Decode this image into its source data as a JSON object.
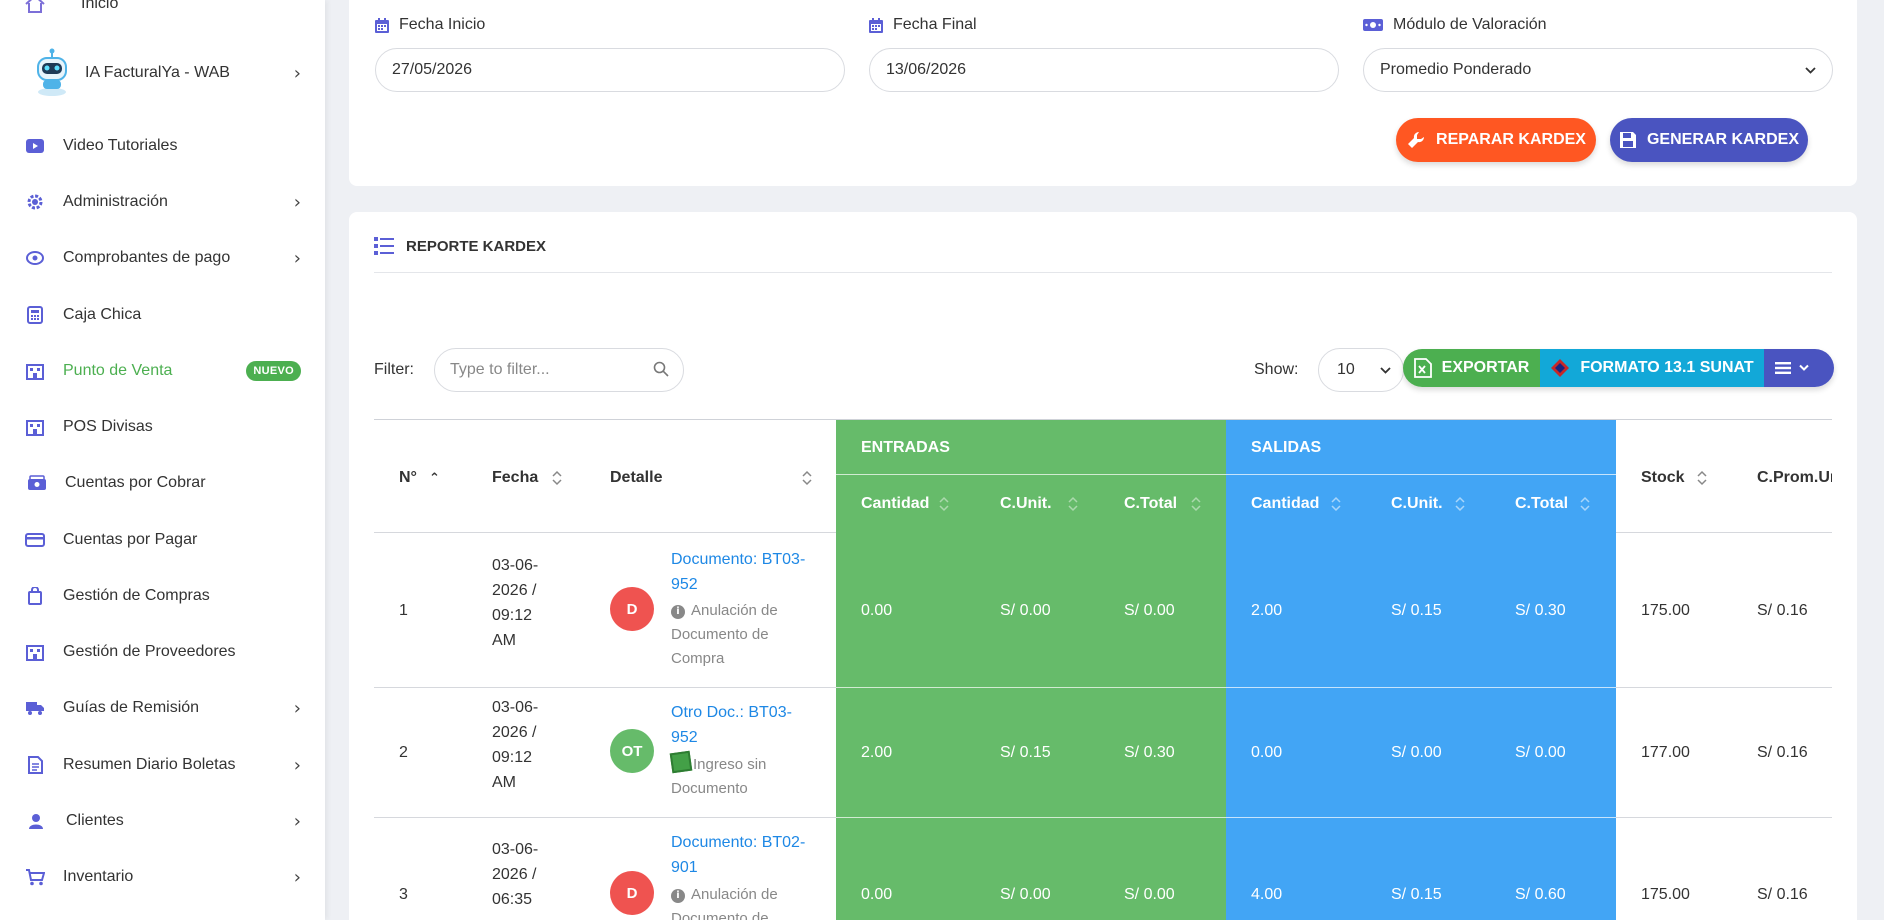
{
  "sidebar": {
    "top_item": "Inicio",
    "items": [
      {
        "label": "IA FacturalYa - WAB",
        "icon": "robot-icon",
        "chevron": true
      },
      {
        "label": "Video Tutoriales",
        "icon": "video-icon",
        "chevron": false
      },
      {
        "label": "Administración",
        "icon": "gear-icon",
        "chevron": true
      },
      {
        "label": "Comprobantes de pago",
        "icon": "receipt-icon",
        "chevron": true
      },
      {
        "label": "Caja Chica",
        "icon": "calculator-icon",
        "chevron": false
      },
      {
        "label": "Punto de Venta",
        "icon": "store-icon",
        "chevron": false,
        "badge": "NUEVO",
        "active": true
      },
      {
        "label": "POS Divisas",
        "icon": "store-icon",
        "chevron": false
      },
      {
        "label": "Cuentas por Cobrar",
        "icon": "cash-icon",
        "chevron": false
      },
      {
        "label": "Cuentas por Pagar",
        "icon": "card-icon",
        "chevron": false
      },
      {
        "label": "Gestión de Compras",
        "icon": "bag-icon",
        "chevron": false
      },
      {
        "label": "Gestión de Proveedores",
        "icon": "store-icon",
        "chevron": false
      },
      {
        "label": "Guías de Remisión",
        "icon": "truck-icon",
        "chevron": true
      },
      {
        "label": "Resumen Diario Boletas",
        "icon": "document-icon",
        "chevron": true
      },
      {
        "label": "Clientes",
        "icon": "user-icon",
        "chevron": true
      },
      {
        "label": "Inventario",
        "icon": "cart-icon",
        "chevron": true
      }
    ]
  },
  "filters": {
    "start_label": "Fecha Inicio",
    "start_value": "27/05/2026",
    "end_label": "Fecha Final",
    "end_value": "13/06/2026",
    "valuation_label": "Módulo de Valoración",
    "valuation_value": "Promedio Ponderado"
  },
  "actions": {
    "repair_label": "REPARAR KARDEX",
    "generate_label": "GENERAR KARDEX"
  },
  "report": {
    "title": "REPORTE KARDEX",
    "filter_label": "Filter:",
    "filter_placeholder": "Type to filter...",
    "show_label": "Show:",
    "show_value": "10",
    "export_label": "EXPORTAR",
    "format_label": "FORMATO 13.1 SUNAT"
  },
  "table": {
    "headers": {
      "n": "N°",
      "fecha": "Fecha",
      "detalle": "Detalle",
      "entradas": "ENTRADAS",
      "salidas": "SALIDAS",
      "cantidad": "Cantidad",
      "cunit": "C.Unit.",
      "ctotal": "C.Total",
      "stock": "Stock",
      "cprom": "C.Prom.Ur"
    },
    "rows": [
      {
        "n": "1",
        "fecha": [
          "03-06-",
          "2026 /",
          "09:12",
          "AM"
        ],
        "avatar": "D",
        "avatar_color": "#ef5350",
        "doc": [
          "Documento: BT03-",
          "952"
        ],
        "desc_icon": "info",
        "desc": [
          "Anulación de",
          "Documento de",
          "Compra"
        ],
        "in_qty": "0.00",
        "in_unit": "S/ 0.00",
        "in_total": "S/ 0.00",
        "out_qty": "2.00",
        "out_unit": "S/ 0.15",
        "out_total": "S/ 0.30",
        "stock": "175.00",
        "cprom": "S/ 0.16"
      },
      {
        "n": "2",
        "fecha": [
          "03-06-",
          "2026 /",
          "09:12",
          "AM"
        ],
        "avatar": "OT",
        "avatar_color": "#66bb6a",
        "doc": [
          "Otro Doc.: BT03-",
          "952"
        ],
        "desc_icon": "note",
        "desc": [
          "Ingreso sin",
          "Documento"
        ],
        "in_qty": "2.00",
        "in_unit": "S/ 0.15",
        "in_total": "S/ 0.30",
        "out_qty": "0.00",
        "out_unit": "S/ 0.00",
        "out_total": "S/ 0.00",
        "stock": "177.00",
        "cprom": "S/ 0.16"
      },
      {
        "n": "3",
        "fecha": [
          "03-06-",
          "2026 /",
          "06:35"
        ],
        "avatar": "D",
        "avatar_color": "#ef5350",
        "doc": [
          "Documento: BT02-",
          "901"
        ],
        "desc_icon": "info",
        "desc": [
          "Anulación de",
          "Documento de"
        ],
        "in_qty": "0.00",
        "in_unit": "S/ 0.00",
        "in_total": "S/ 0.00",
        "out_qty": "4.00",
        "out_unit": "S/ 0.15",
        "out_total": "S/ 0.60",
        "stock": "175.00",
        "cprom": "S/ 0.16"
      }
    ]
  }
}
